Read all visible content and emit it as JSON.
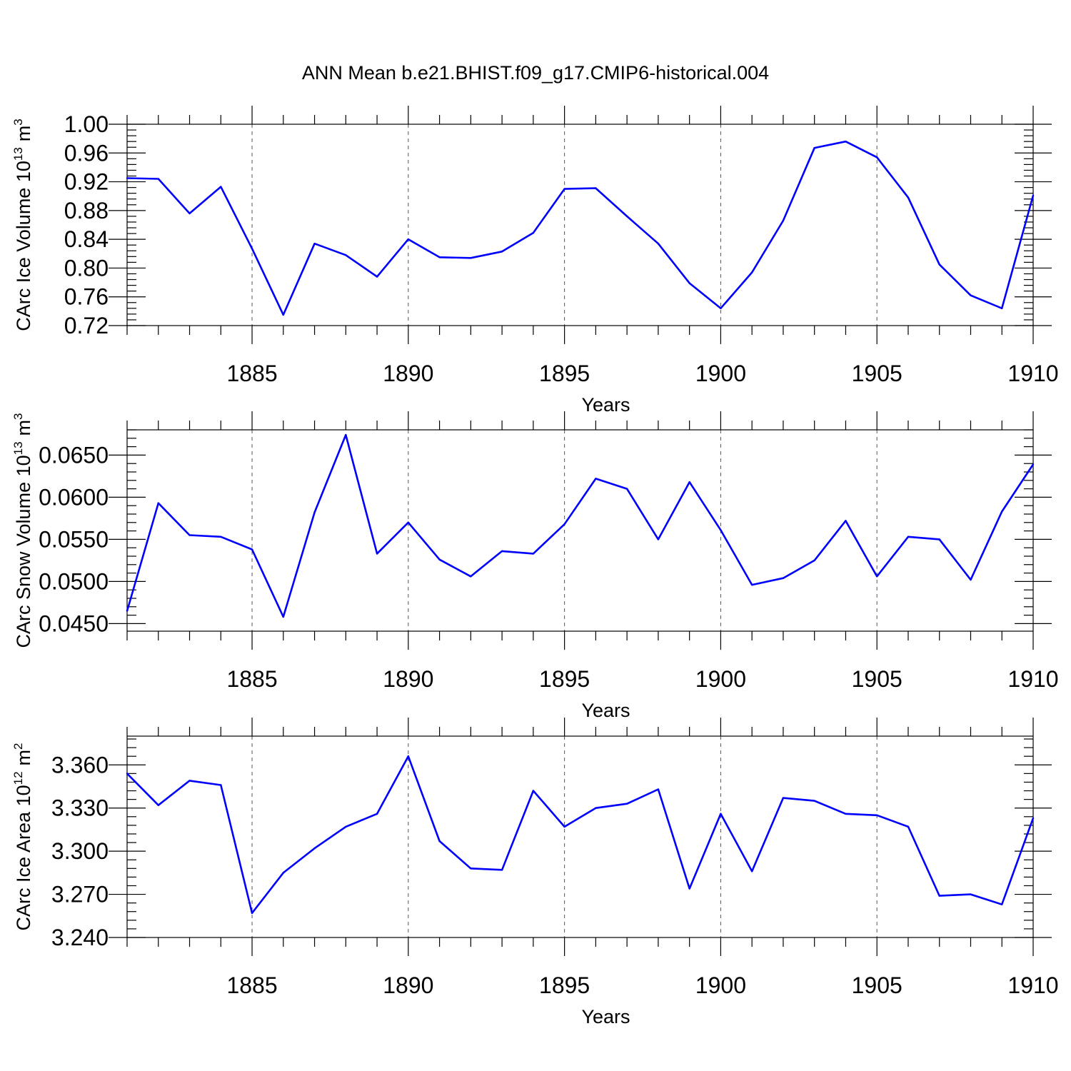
{
  "title": "ANN Mean b.e21.BHIST.f09_g17.CMIP6-historical.004",
  "colors": {
    "line": "#0000ff",
    "axes": "#000000",
    "grid": "#555555"
  },
  "chart_data": [
    {
      "type": "line",
      "ylabel": "CArc Ice Volume 10",
      "ylabel_sup": "13",
      "ylabel_unit": "m",
      "ylabel_unit_sup": "3",
      "xlabel": "Years",
      "xlim": [
        1881,
        1910
      ],
      "ylim": [
        0.72,
        1.0
      ],
      "xticks": [
        1885,
        1890,
        1895,
        1900,
        1905,
        1910
      ],
      "yticks": [
        "0.72",
        "0.76",
        "0.80",
        "0.84",
        "0.88",
        "0.92",
        "0.96",
        "1.00"
      ],
      "ytick_values": [
        0.72,
        0.76,
        0.8,
        0.84,
        0.88,
        0.92,
        0.96,
        1.0
      ],
      "grid": "x dashed",
      "x": [
        1881,
        1882,
        1883,
        1884,
        1885,
        1886,
        1887,
        1888,
        1889,
        1890,
        1891,
        1892,
        1893,
        1894,
        1895,
        1896,
        1897,
        1898,
        1899,
        1900,
        1901,
        1902,
        1903,
        1904,
        1905,
        1906,
        1907,
        1908,
        1909,
        1910
      ],
      "values": [
        0.925,
        0.924,
        0.876,
        0.913,
        0.827,
        0.735,
        0.834,
        0.818,
        0.788,
        0.84,
        0.815,
        0.814,
        0.823,
        0.849,
        0.91,
        0.911,
        0.872,
        0.834,
        0.779,
        0.744,
        0.794,
        0.866,
        0.967,
        0.976,
        0.954,
        0.898,
        0.805,
        0.762,
        0.744,
        0.901
      ]
    },
    {
      "type": "line",
      "ylabel": "CArc Snow Volume 10",
      "ylabel_sup": "13",
      "ylabel_unit": "m",
      "ylabel_unit_sup": "3",
      "xlabel": "Years",
      "xlim": [
        1881,
        1910
      ],
      "ylim": [
        0.0441,
        0.068
      ],
      "xticks": [
        1885,
        1890,
        1895,
        1900,
        1905,
        1910
      ],
      "yticks": [
        "0.0450",
        "0.0500",
        "0.0550",
        "0.0600",
        "0.0650"
      ],
      "ytick_values": [
        0.045,
        0.05,
        0.055,
        0.06,
        0.065
      ],
      "grid": "x dashed",
      "x": [
        1881,
        1882,
        1883,
        1884,
        1885,
        1886,
        1887,
        1888,
        1889,
        1890,
        1891,
        1892,
        1893,
        1894,
        1895,
        1896,
        1897,
        1898,
        1899,
        1900,
        1901,
        1902,
        1903,
        1904,
        1905,
        1906,
        1907,
        1908,
        1909,
        1910
      ],
      "values": [
        0.0465,
        0.0593,
        0.0555,
        0.0553,
        0.0538,
        0.0458,
        0.0582,
        0.0674,
        0.0533,
        0.057,
        0.0526,
        0.0506,
        0.0536,
        0.0533,
        0.0568,
        0.0622,
        0.061,
        0.055,
        0.0618,
        0.0561,
        0.0496,
        0.0504,
        0.0525,
        0.0572,
        0.0506,
        0.0553,
        0.055,
        0.0502,
        0.0583,
        0.0639
      ]
    },
    {
      "type": "line",
      "ylabel": "CArc Ice Area 10",
      "ylabel_sup": "12",
      "ylabel_unit": "m",
      "ylabel_unit_sup": "2",
      "xlabel": "Years",
      "xlim": [
        1881,
        1910
      ],
      "ylim": [
        3.24,
        3.38
      ],
      "xticks": [
        1885,
        1890,
        1895,
        1900,
        1905,
        1910
      ],
      "yticks": [
        "3.240",
        "3.270",
        "3.300",
        "3.330",
        "3.360"
      ],
      "ytick_values": [
        3.24,
        3.27,
        3.3,
        3.33,
        3.36
      ],
      "grid": "x dashed",
      "x": [
        1881,
        1882,
        1883,
        1884,
        1885,
        1886,
        1887,
        1888,
        1889,
        1890,
        1891,
        1892,
        1893,
        1894,
        1895,
        1896,
        1897,
        1898,
        1899,
        1900,
        1901,
        1902,
        1903,
        1904,
        1905,
        1906,
        1907,
        1908,
        1909,
        1910
      ],
      "values": [
        3.354,
        3.332,
        3.349,
        3.346,
        3.257,
        3.285,
        3.302,
        3.317,
        3.326,
        3.366,
        3.307,
        3.288,
        3.287,
        3.342,
        3.317,
        3.33,
        3.333,
        3.343,
        3.274,
        3.326,
        3.286,
        3.337,
        3.335,
        3.326,
        3.325,
        3.317,
        3.269,
        3.27,
        3.263,
        3.323
      ]
    }
  ]
}
